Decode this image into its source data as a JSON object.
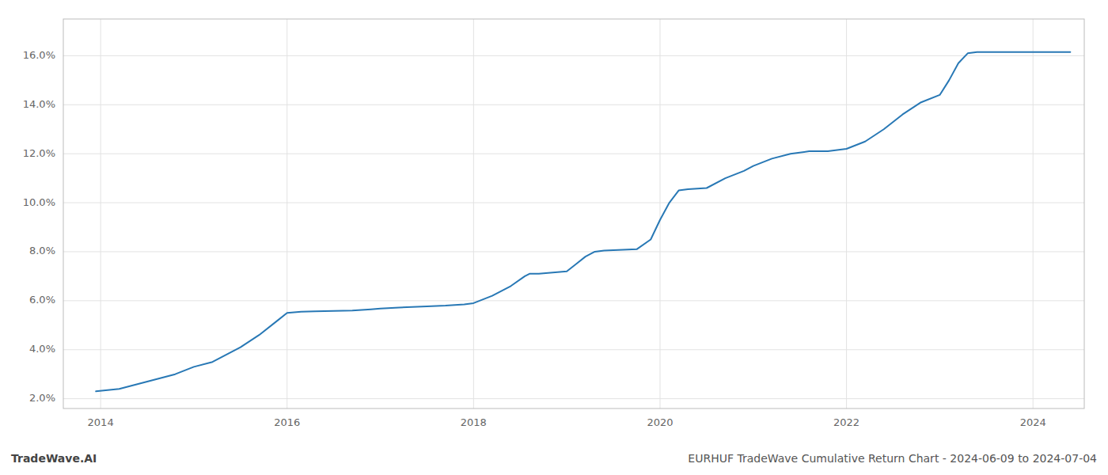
{
  "chart_data": {
    "type": "line",
    "title": "TradeWave.AI",
    "subtitle": "EURHUF TradeWave Cumulative Return Chart - 2024-06-09 to 2024-07-04",
    "color": "#2878b5",
    "grid": true,
    "x": [
      2013.95,
      2014.2,
      2014.5,
      2014.8,
      2015.0,
      2015.2,
      2015.5,
      2015.7,
      2015.9,
      2016.0,
      2016.15,
      2016.3,
      2016.5,
      2016.7,
      2016.9,
      2017.0,
      2017.2,
      2017.5,
      2017.7,
      2017.9,
      2018.0,
      2018.2,
      2018.4,
      2018.55,
      2018.6,
      2018.7,
      2018.85,
      2019.0,
      2019.1,
      2019.2,
      2019.3,
      2019.4,
      2019.6,
      2019.75,
      2019.9,
      2020.0,
      2020.1,
      2020.2,
      2020.3,
      2020.5,
      2020.7,
      2020.9,
      2021.0,
      2021.2,
      2021.4,
      2021.6,
      2021.8,
      2022.0,
      2022.2,
      2022.4,
      2022.6,
      2022.8,
      2023.0,
      2023.1,
      2023.2,
      2023.3,
      2023.4,
      2023.6,
      2023.8,
      2024.0,
      2024.2,
      2024.4
    ],
    "values": [
      2.3,
      2.4,
      2.7,
      3.0,
      3.3,
      3.5,
      4.1,
      4.6,
      5.2,
      5.5,
      5.55,
      5.57,
      5.58,
      5.6,
      5.65,
      5.68,
      5.72,
      5.77,
      5.8,
      5.85,
      5.9,
      6.2,
      6.6,
      7.0,
      7.1,
      7.1,
      7.15,
      7.2,
      7.5,
      7.8,
      8.0,
      8.05,
      8.08,
      8.1,
      8.5,
      9.3,
      10.0,
      10.5,
      10.55,
      10.6,
      11.0,
      11.3,
      11.5,
      11.8,
      12.0,
      12.1,
      12.1,
      12.2,
      12.5,
      13.0,
      13.6,
      14.1,
      14.4,
      15.0,
      15.7,
      16.1,
      16.15,
      16.15,
      16.15,
      16.15,
      16.15,
      16.15
    ],
    "xlim": [
      2013.6,
      2024.55
    ],
    "xticks": [
      2014,
      2016,
      2018,
      2020,
      2022,
      2024
    ],
    "ylim": [
      1.6,
      17.5
    ],
    "yticks": [
      {
        "value": 2.0,
        "label": "2.0%"
      },
      {
        "value": 4.0,
        "label": "4.0%"
      },
      {
        "value": 6.0,
        "label": "6.0%"
      },
      {
        "value": 8.0,
        "label": "8.0%"
      },
      {
        "value": 10.0,
        "label": "10.0%"
      },
      {
        "value": 12.0,
        "label": "12.0%"
      },
      {
        "value": 14.0,
        "label": "14.0%"
      },
      {
        "value": 16.0,
        "label": "16.0%"
      }
    ]
  }
}
